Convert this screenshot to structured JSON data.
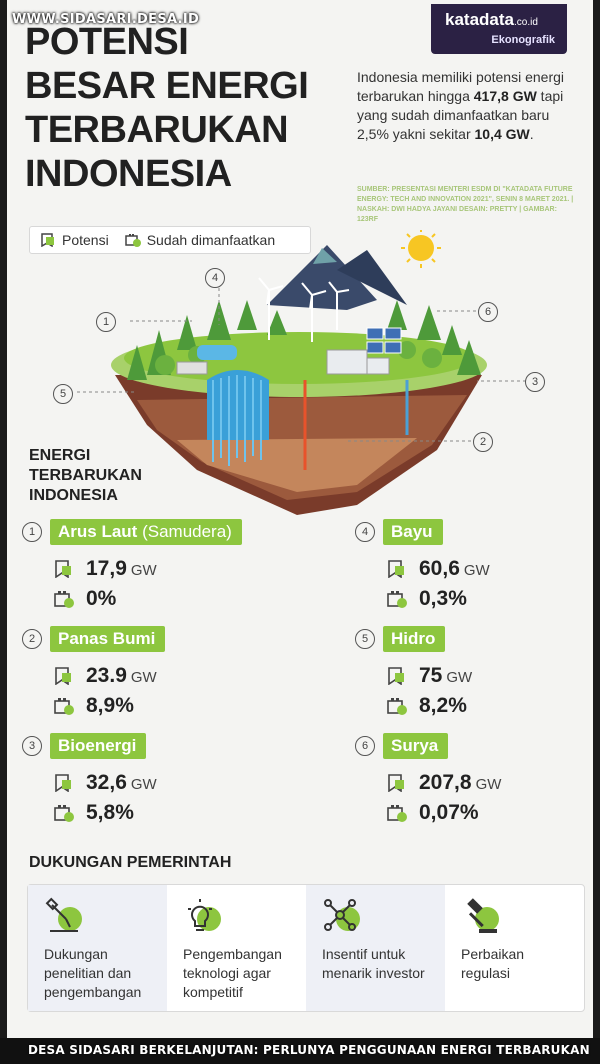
{
  "watermark": "WWW.SIDASARI.DESA.ID",
  "brand": {
    "name": "katadata",
    "domain": ".co.id",
    "sub": "Ekonografik"
  },
  "title_lines": [
    "POTENSI",
    "BESAR ENERGI",
    "TERBARUKAN",
    "INDONESIA"
  ],
  "intro": {
    "part1": "Indonesia memiliki potensi energi terbarukan hingga ",
    "potential": "417,8 GW",
    "part2": " tapi yang sudah dimanfaatkan baru 2,5% yakni sekitar ",
    "used": "10,4 GW",
    "part3": "."
  },
  "source": "SUMBER: PRESENTASI MENTERI ESDM DI \"KATADATA FUTURE ENERGY: TECH AND INNOVATION 2021\", SENIN 8 MARET 2021. | NASKAH: DWI HADYA JAYANI DESAIN: PRETTY | GAMBAR: 123RF",
  "legend": {
    "potential": "Potensi",
    "used": "Sudah dimanfaatkan"
  },
  "callouts": [
    "1",
    "2",
    "3",
    "4",
    "5",
    "6"
  ],
  "section_title": "ENERGI TERBARUKAN INDONESIA",
  "unit": "GW",
  "categories": [
    {
      "num": "1",
      "name": "Arus Laut",
      "extra": "(Samudera)",
      "potential": "17,9",
      "used": "0%"
    },
    {
      "num": "2",
      "name": "Panas Bumi",
      "extra": "",
      "potential": "23.9",
      "used": "8,9%"
    },
    {
      "num": "3",
      "name": "Bioenergi",
      "extra": "",
      "potential": "32,6",
      "used": "5,8%"
    },
    {
      "num": "4",
      "name": "Bayu",
      "extra": "",
      "potential": "60,6",
      "used": "0,3%"
    },
    {
      "num": "5",
      "name": "Hidro",
      "extra": "",
      "potential": "75",
      "used": "8,2%"
    },
    {
      "num": "6",
      "name": "Surya",
      "extra": "",
      "potential": "207,8",
      "used": "0,07%"
    }
  ],
  "support_title": "DUKUNGAN PEMERINTAH",
  "support": [
    {
      "label": "Dukungan penelitian dan pengembangan",
      "icon": "microscope-icon"
    },
    {
      "label": "Pengembangan teknologi agar kompetitif",
      "icon": "lightbulb-icon"
    },
    {
      "label": "Insentif untuk menarik investor",
      "icon": "network-icon"
    },
    {
      "label": "Perbaikan regulasi",
      "icon": "gavel-icon"
    }
  ],
  "caption": "DESA SIDASARI BERKELANJUTAN: PERLUNYA PENGGUNAAN ENERGI TERBARUKAN",
  "colors": {
    "accent": "#8dc63f",
    "brand": "#2b2144",
    "background": "#f4f4f2"
  }
}
